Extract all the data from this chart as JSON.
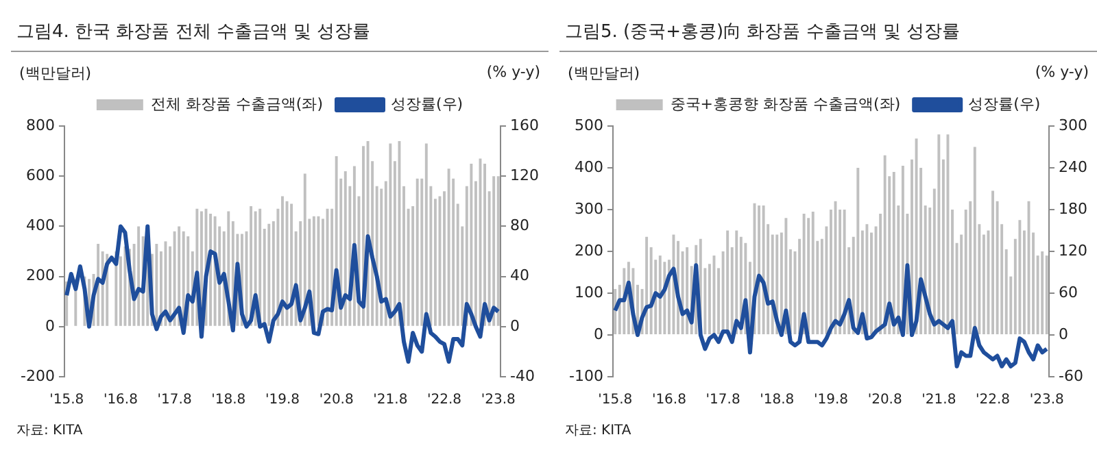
{
  "chart_data": [
    {
      "type": "bar",
      "title": "그림4. 한국 화장품 전체 수출금액 및 성장률",
      "ylabel": "(백만달러)",
      "y2label": "(% y-y)",
      "annotations": [
        "자료: KITA"
      ],
      "categories": [
        "'15.8",
        null,
        null,
        null,
        null,
        null,
        null,
        null,
        null,
        null,
        null,
        null,
        "'16.8",
        null,
        null,
        null,
        null,
        null,
        null,
        null,
        null,
        null,
        null,
        null,
        "'17.8",
        null,
        null,
        null,
        null,
        null,
        null,
        null,
        null,
        null,
        null,
        null,
        "'18.8",
        null,
        null,
        null,
        null,
        null,
        null,
        null,
        null,
        null,
        null,
        null,
        "'19.8",
        null,
        null,
        null,
        null,
        null,
        null,
        null,
        null,
        null,
        null,
        null,
        "'20.8",
        null,
        null,
        null,
        null,
        null,
        null,
        null,
        null,
        null,
        null,
        null,
        "'21.8",
        null,
        null,
        null,
        null,
        null,
        null,
        null,
        null,
        null,
        null,
        null,
        "'22.8",
        null,
        null,
        null,
        null,
        null,
        null,
        null,
        null,
        null,
        null,
        null,
        "'23.8"
      ],
      "series": [
        {
          "name": "전체 화장품 수출금액(좌)",
          "color": "#c0c0c0",
          "values": [
            180,
            null,
            190,
            null,
            200,
            190,
            210,
            330,
            300,
            290,
            null,
            300,
            280,
            320,
            310,
            330,
            400,
            360,
            280,
            290,
            330,
            300,
            340,
            320,
            380,
            400,
            380,
            360,
            300,
            470,
            460,
            470,
            450,
            440,
            400,
            380,
            460,
            420,
            370,
            370,
            380,
            480,
            460,
            470,
            390,
            410,
            420,
            470,
            520,
            500,
            490,
            380,
            420,
            610,
            430,
            440,
            440,
            430,
            470,
            470,
            680,
            590,
            620,
            560,
            640,
            520,
            720,
            740,
            660,
            560,
            550,
            580,
            730,
            660,
            740,
            560,
            470,
            480,
            590,
            590,
            730,
            560,
            510,
            520,
            540,
            630,
            590,
            490,
            400,
            560,
            650,
            580,
            670,
            650,
            540,
            600,
            600
          ]
        },
        {
          "name": "성장률(우)",
          "type": "line",
          "axis": "y2",
          "color": "#1f4e9c",
          "values": [
            25,
            42,
            30,
            48,
            30,
            0,
            25,
            38,
            35,
            50,
            55,
            50,
            80,
            75,
            45,
            22,
            30,
            28,
            80,
            10,
            -2,
            8,
            12,
            5,
            10,
            15,
            -5,
            25,
            20,
            43,
            -8,
            40,
            60,
            58,
            35,
            42,
            20,
            -3,
            50,
            10,
            0,
            5,
            25,
            0,
            2,
            -12,
            5,
            10,
            20,
            15,
            18,
            33,
            5,
            15,
            28,
            -5,
            -6,
            12,
            14,
            13,
            45,
            15,
            25,
            22,
            65,
            20,
            16,
            72,
            55,
            40,
            20,
            22,
            8,
            12,
            18,
            -12,
            -28,
            -5,
            -15,
            -20,
            10,
            -5,
            -8,
            -12,
            -14,
            -28,
            -10,
            -10,
            -15,
            18,
            10,
            0,
            -8,
            18,
            5,
            15,
            12
          ]
        }
      ],
      "ylim": [
        -200,
        800
      ],
      "yticks": [
        -200,
        0,
        200,
        400,
        600,
        800
      ],
      "y2lim": [
        -40,
        160
      ],
      "y2ticks": [
        -40,
        0,
        40,
        80,
        120,
        160
      ],
      "legend": "top",
      "grid": false
    },
    {
      "type": "bar",
      "title": "그림5. (중국+홍콩)向 화장품 수출금액 및 성장률",
      "ylabel": "(백만달러)",
      "y2label": "(% y-y)",
      "annotations": [
        "자료: KITA"
      ],
      "categories": [
        "'15.8",
        null,
        null,
        null,
        null,
        null,
        null,
        null,
        null,
        null,
        null,
        null,
        "'16.8",
        null,
        null,
        null,
        null,
        null,
        null,
        null,
        null,
        null,
        null,
        null,
        "'17.8",
        null,
        null,
        null,
        null,
        null,
        null,
        null,
        null,
        null,
        null,
        null,
        "'18.8",
        null,
        null,
        null,
        null,
        null,
        null,
        null,
        null,
        null,
        null,
        null,
        "'19.8",
        null,
        null,
        null,
        null,
        null,
        null,
        null,
        null,
        null,
        null,
        null,
        "'20.8",
        null,
        null,
        null,
        null,
        null,
        null,
        null,
        null,
        null,
        null,
        null,
        "'21.8",
        null,
        null,
        null,
        null,
        null,
        null,
        null,
        null,
        null,
        null,
        null,
        "'22.8",
        null,
        null,
        null,
        null,
        null,
        null,
        null,
        null,
        null,
        null,
        null,
        "'23.8"
      ],
      "series": [
        {
          "name": "중국+홍콩향 화장품 수출금액(좌)",
          "color": "#c0c0c0",
          "values": [
            110,
            120,
            160,
            175,
            160,
            120,
            110,
            235,
            210,
            180,
            190,
            175,
            180,
            240,
            225,
            200,
            210,
            165,
            215,
            230,
            160,
            170,
            190,
            160,
            200,
            250,
            210,
            250,
            235,
            220,
            175,
            315,
            310,
            310,
            265,
            240,
            240,
            245,
            280,
            205,
            200,
            230,
            290,
            280,
            295,
            225,
            230,
            260,
            300,
            320,
            300,
            300,
            210,
            235,
            400,
            250,
            265,
            245,
            260,
            290,
            430,
            380,
            390,
            310,
            405,
            290,
            420,
            470,
            400,
            310,
            305,
            350,
            480,
            420,
            480,
            300,
            220,
            240,
            300,
            320,
            450,
            265,
            240,
            250,
            345,
            320,
            265,
            205,
            140,
            230,
            275,
            250,
            320,
            245,
            190,
            200,
            190
          ]
        },
        {
          "name": "성장률(우)",
          "type": "line",
          "axis": "y2",
          "color": "#1f4e9c",
          "values": [
            35,
            50,
            50,
            75,
            30,
            0,
            25,
            40,
            42,
            60,
            55,
            65,
            85,
            95,
            55,
            30,
            35,
            18,
            100,
            0,
            -20,
            -5,
            0,
            -10,
            5,
            5,
            -10,
            20,
            10,
            50,
            -25,
            55,
            85,
            75,
            45,
            48,
            20,
            0,
            35,
            -10,
            -15,
            -10,
            30,
            -10,
            -10,
            -10,
            -15,
            -5,
            10,
            20,
            15,
            30,
            50,
            10,
            3,
            30,
            -5,
            -3,
            5,
            10,
            15,
            45,
            15,
            25,
            0,
            100,
            0,
            20,
            80,
            55,
            30,
            15,
            20,
            15,
            10,
            20,
            -45,
            -25,
            -30,
            -30,
            10,
            -15,
            -25,
            -30,
            -35,
            -30,
            -45,
            -35,
            -45,
            -40,
            -5,
            -10,
            -25,
            -35,
            -15,
            -25,
            -20
          ]
        }
      ],
      "ylim": [
        -100,
        500
      ],
      "yticks": [
        -100,
        0,
        100,
        200,
        300,
        400,
        500
      ],
      "y2lim": [
        -60,
        300
      ],
      "y2ticks": [
        -60,
        0,
        60,
        120,
        180,
        240,
        300
      ],
      "legend": "top",
      "grid": false
    }
  ]
}
